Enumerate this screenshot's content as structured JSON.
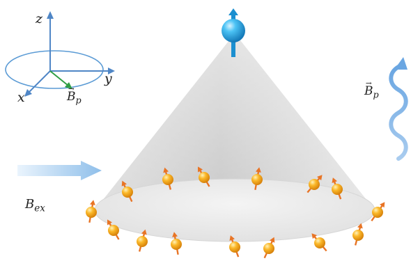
{
  "axes": {
    "z_label": "z",
    "y_label": "y",
    "x_label": "x"
  },
  "labels": {
    "bp_symbol": "B",
    "bp_sub": "p",
    "bex_symbol": "B",
    "bex_sub": "ex"
  },
  "colors": {
    "axis": "#4f86c6",
    "field_vector": "#2f9e44",
    "central_spin": "#29a9e6",
    "bath_spin": "#f6a21a",
    "spin_arrow": "#e87425",
    "cone": "#d0d0d0",
    "ex_arrow": "#9ec8f0",
    "wave": "#7fb3e6"
  },
  "icons": {
    "central": "sphere-with-arrow",
    "bath": "small-spin-sphere",
    "pulse": "wavy-arrow"
  },
  "bath_spin_count": 20
}
